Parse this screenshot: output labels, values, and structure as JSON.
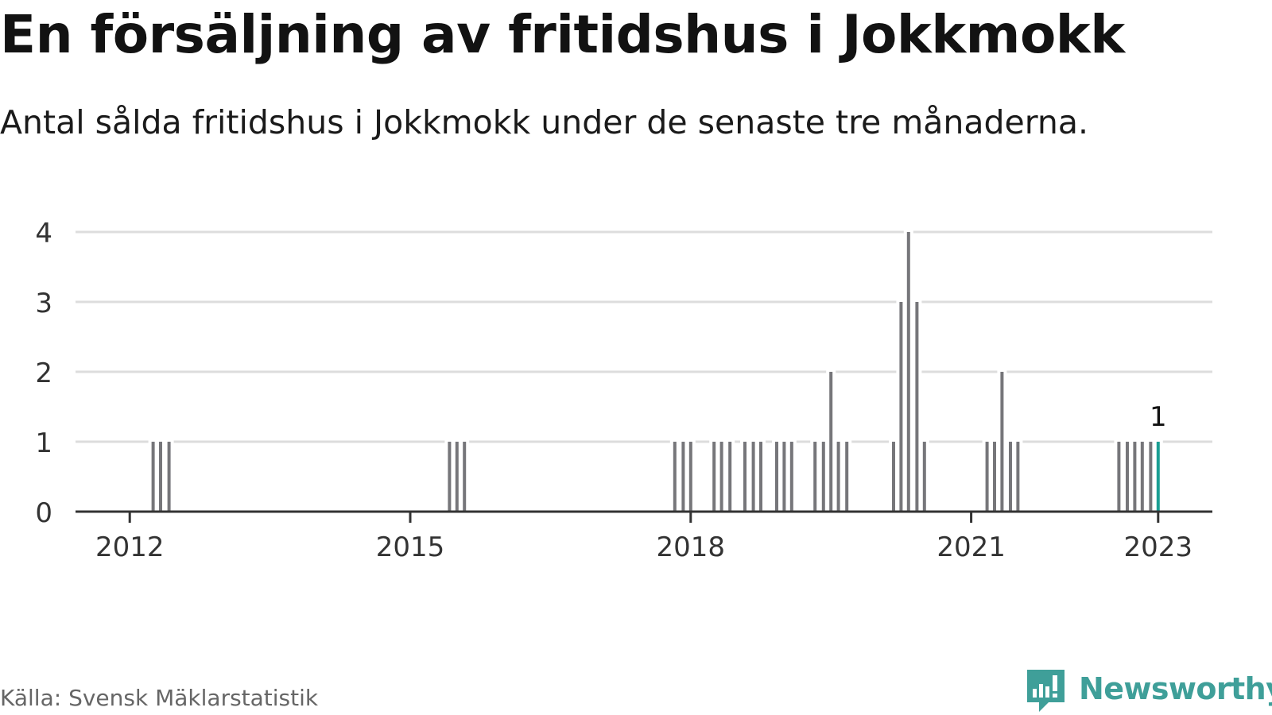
{
  "title": "En försäljning av fritidshus i Jokkmokk",
  "subtitle": "Antal sålda fritidshus i Jokkmokk under de senaste tre månaderna.",
  "source": "Källa: Svensk Mäklarstatistik",
  "brand": {
    "name": "Newsworthy",
    "logo_icon": "newsworthy-bar-chart-logo-icon"
  },
  "colors": {
    "bar": "#76767a",
    "highlight": "#1a9e94",
    "grid": "#dddddd",
    "axis": "#333333",
    "brand": "#3f9f99"
  },
  "chart_data": {
    "type": "bar",
    "title": "En försäljning av fritidshus i Jokkmokk",
    "subtitle": "Antal sålda fritidshus i Jokkmokk under de senaste tre månaderna.",
    "xlabel": "",
    "ylabel": "",
    "ylim": [
      0,
      4
    ],
    "yticks": [
      0,
      1,
      2,
      3,
      4
    ],
    "xlim": [
      2011.42,
      2023.58
    ],
    "xticks": [
      {
        "value": 2012.0,
        "label": "2012"
      },
      {
        "value": 2015.0,
        "label": "2015"
      },
      {
        "value": 2018.0,
        "label": "2018"
      },
      {
        "value": 2021.0,
        "label": "2021"
      },
      {
        "value": 2023.0,
        "label": "2023"
      }
    ],
    "grid": true,
    "highlight_label": "1",
    "series": [
      {
        "name": "Antal sålda fritidshus",
        "points": [
          {
            "x": 2012.25,
            "value": 1
          },
          {
            "x": 2012.33,
            "value": 1
          },
          {
            "x": 2012.42,
            "value": 1
          },
          {
            "x": 2015.42,
            "value": 1
          },
          {
            "x": 2015.5,
            "value": 1
          },
          {
            "x": 2015.58,
            "value": 1
          },
          {
            "x": 2017.83,
            "value": 1
          },
          {
            "x": 2017.92,
            "value": 1
          },
          {
            "x": 2018.0,
            "value": 1
          },
          {
            "x": 2018.08,
            "value": 0
          },
          {
            "x": 2018.17,
            "value": 0
          },
          {
            "x": 2018.25,
            "value": 1
          },
          {
            "x": 2018.33,
            "value": 1
          },
          {
            "x": 2018.42,
            "value": 1
          },
          {
            "x": 2018.5,
            "value": 0
          },
          {
            "x": 2018.58,
            "value": 1
          },
          {
            "x": 2018.67,
            "value": 1
          },
          {
            "x": 2018.75,
            "value": 1
          },
          {
            "x": 2018.83,
            "value": 0
          },
          {
            "x": 2018.92,
            "value": 1
          },
          {
            "x": 2019.0,
            "value": 1
          },
          {
            "x": 2019.08,
            "value": 1
          },
          {
            "x": 2019.17,
            "value": 0
          },
          {
            "x": 2019.33,
            "value": 1
          },
          {
            "x": 2019.42,
            "value": 1
          },
          {
            "x": 2019.5,
            "value": 2
          },
          {
            "x": 2019.58,
            "value": 1
          },
          {
            "x": 2019.67,
            "value": 1
          },
          {
            "x": 2020.17,
            "value": 1
          },
          {
            "x": 2020.25,
            "value": 3
          },
          {
            "x": 2020.33,
            "value": 4
          },
          {
            "x": 2020.42,
            "value": 3
          },
          {
            "x": 2020.5,
            "value": 1
          },
          {
            "x": 2021.17,
            "value": 1
          },
          {
            "x": 2021.25,
            "value": 1
          },
          {
            "x": 2021.33,
            "value": 2
          },
          {
            "x": 2021.42,
            "value": 1
          },
          {
            "x": 2021.5,
            "value": 1
          },
          {
            "x": 2022.58,
            "value": 1
          },
          {
            "x": 2022.67,
            "value": 1
          },
          {
            "x": 2022.75,
            "value": 1
          },
          {
            "x": 2022.83,
            "value": 1
          },
          {
            "x": 2022.92,
            "value": 1
          },
          {
            "x": 2023.0,
            "value": 1,
            "highlight": true
          }
        ]
      }
    ]
  }
}
